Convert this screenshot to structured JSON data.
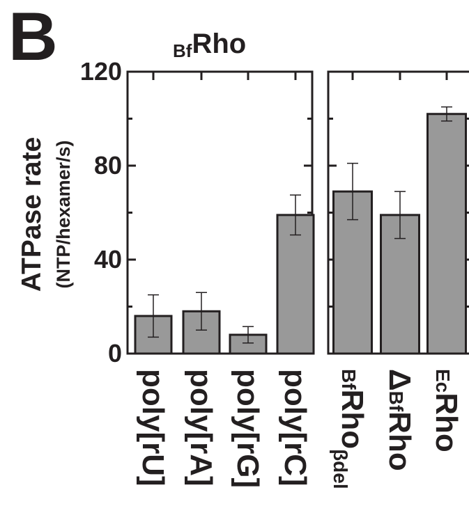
{
  "panel_label": "B",
  "title": {
    "prefix": "Bf",
    "main": "Rho"
  },
  "ylabel_main": "ATPase rate",
  "ylabel_sub": "(NTP/hexamer/s)",
  "colors": {
    "bar": "#999999",
    "axis": "#231f20",
    "errorbar": "#231f20"
  },
  "chart_data": {
    "type": "bar",
    "title": "BfRho",
    "ylabel": "ATPase rate (NTP/hexamer/s)",
    "ylim": [
      0,
      120
    ],
    "yticks": [
      0,
      40,
      80,
      120
    ],
    "panels": [
      {
        "categories": [
          "poly[rU]",
          "poly[rA]",
          "poly[rG]",
          "poly[rC]"
        ],
        "values": [
          16,
          18,
          8,
          59
        ],
        "errors": [
          9,
          8,
          3.5,
          8.5
        ]
      },
      {
        "categories": [
          "BfRhoβdel",
          "ΔBfRho",
          "EcRho"
        ],
        "values": [
          69,
          59,
          102
        ],
        "errors": [
          12,
          10,
          3
        ]
      }
    ]
  },
  "xlabels": [
    {
      "parts": [
        {
          "t": "poly[rU]",
          "s": "n"
        }
      ]
    },
    {
      "parts": [
        {
          "t": "poly[rA]",
          "s": "n"
        }
      ]
    },
    {
      "parts": [
        {
          "t": "poly[rG]",
          "s": "n"
        }
      ]
    },
    {
      "parts": [
        {
          "t": "poly[rC]",
          "s": "n"
        }
      ]
    },
    {
      "parts": [
        {
          "t": "Bf",
          "s": "s"
        },
        {
          "t": "Rho",
          "s": "n"
        },
        {
          "t": "βdel",
          "s": "b"
        }
      ]
    },
    {
      "parts": [
        {
          "t": "Δ",
          "s": "n"
        },
        {
          "t": "Bf",
          "s": "s"
        },
        {
          "t": "Rho",
          "s": "n"
        }
      ]
    },
    {
      "parts": [
        {
          "t": "Ec",
          "s": "s"
        },
        {
          "t": "Rho",
          "s": "n"
        }
      ]
    }
  ]
}
